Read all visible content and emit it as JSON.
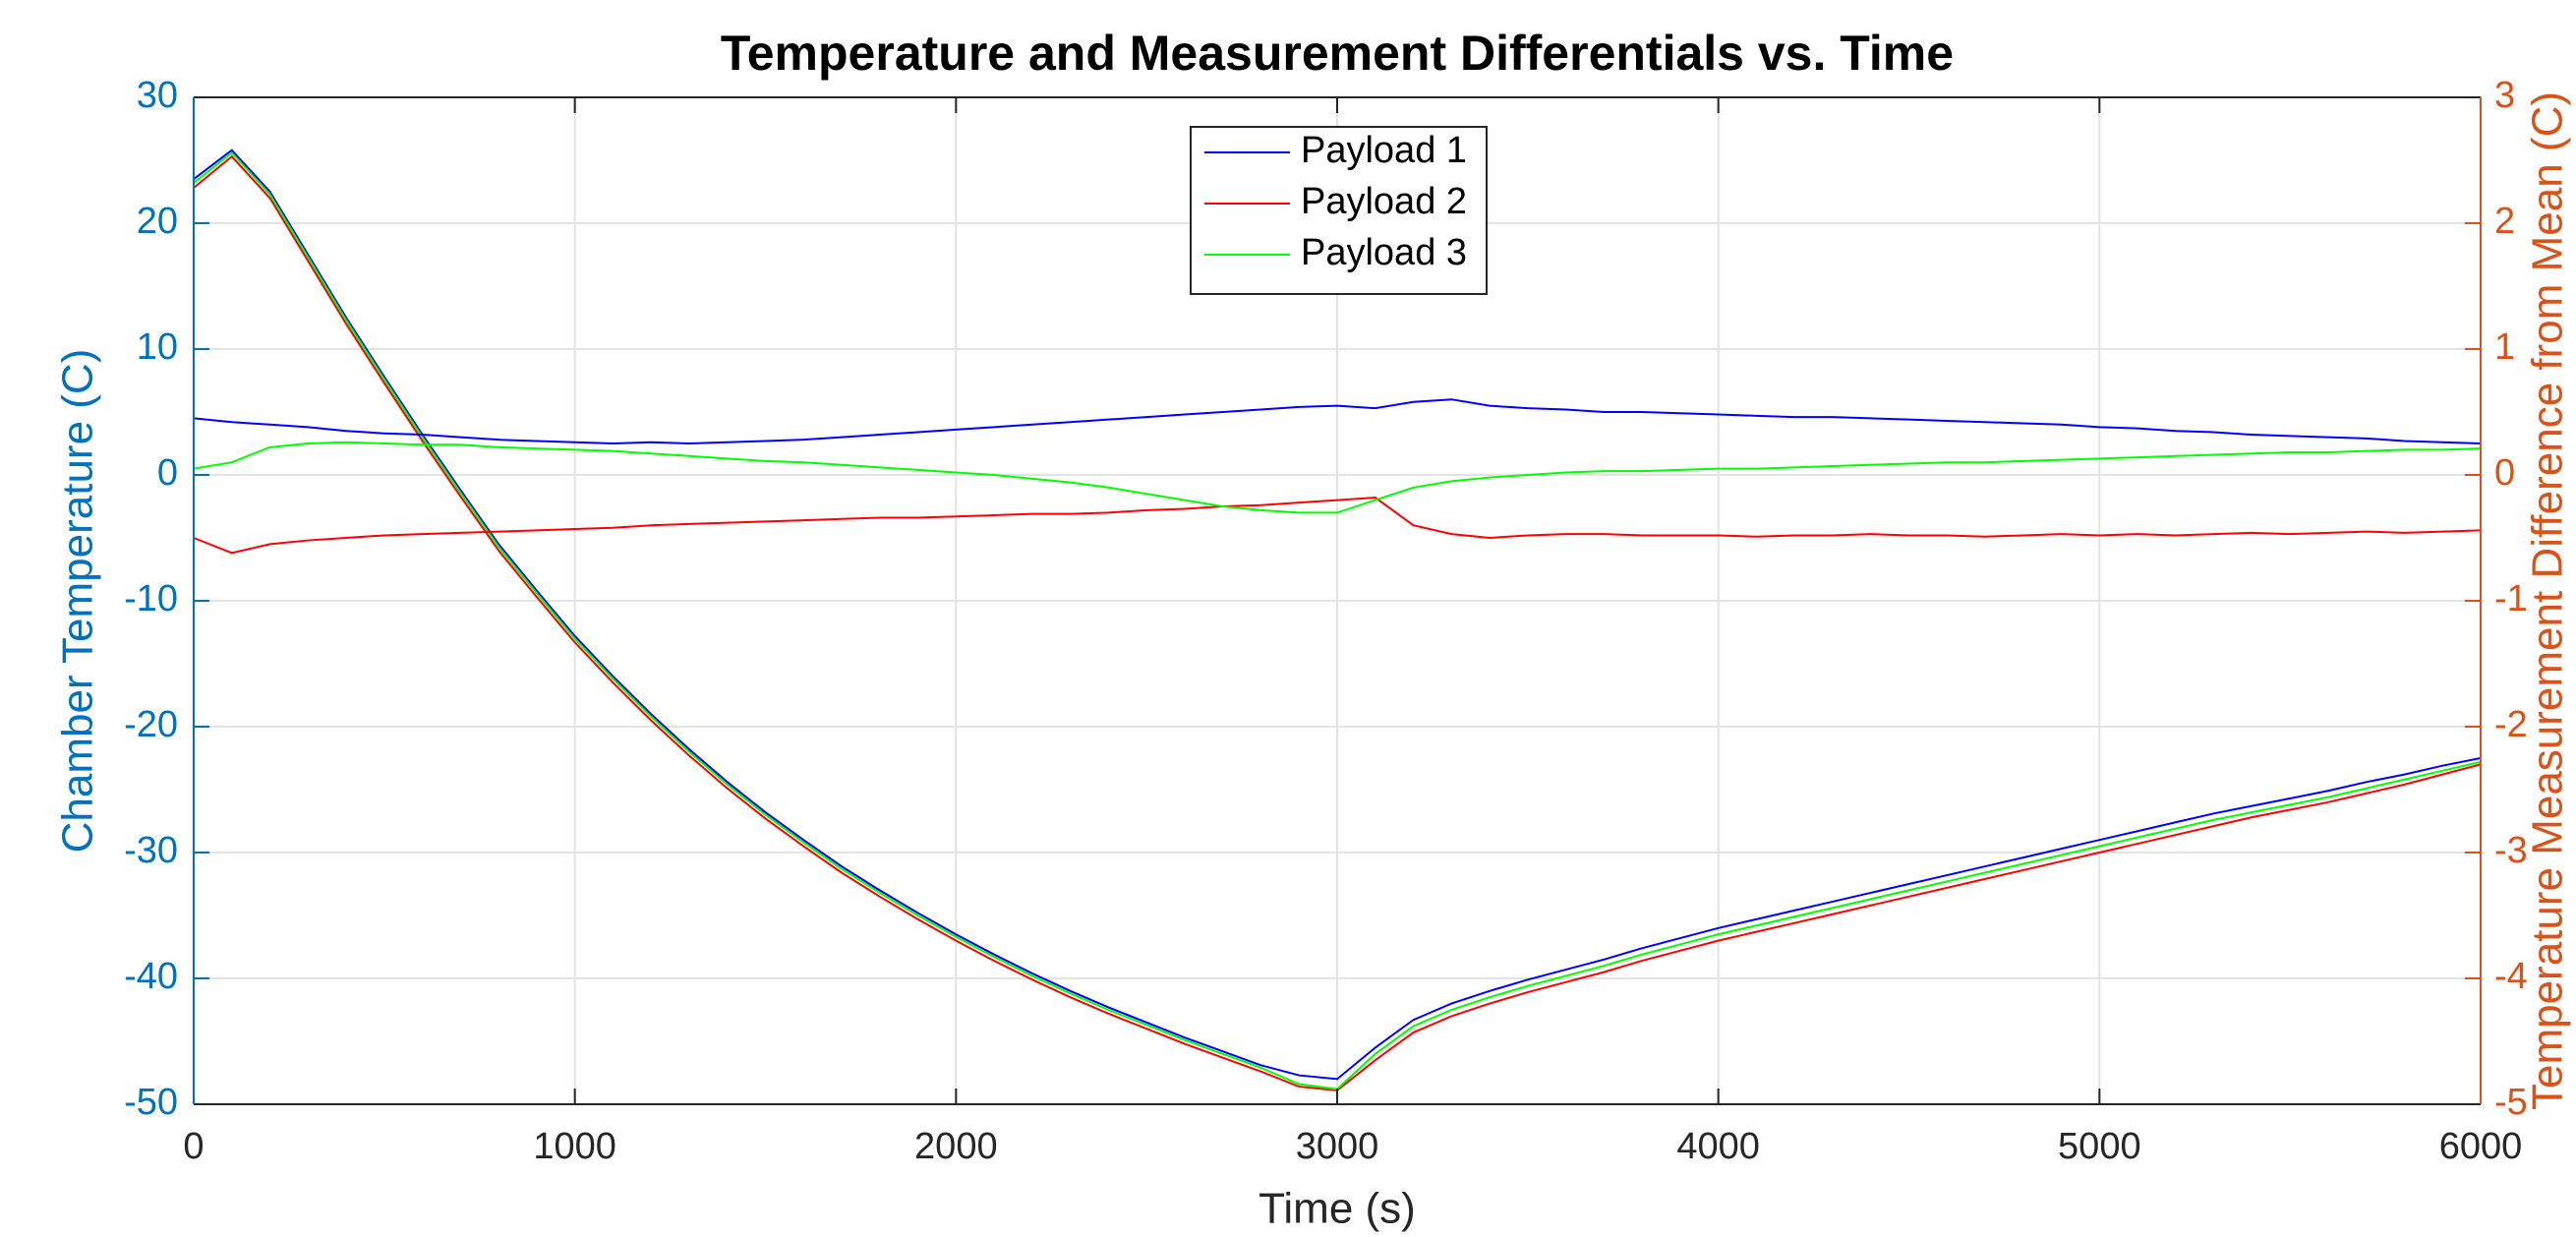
{
  "chart_data": {
    "type": "line",
    "title": "Temperature and Measurement Differentials vs. Time",
    "xlabel": "Time (s)",
    "ylabel": "Chamber Temperature (C)",
    "y2label": "Temperature Measurement Difference from Mean (C)",
    "x": [
      0,
      100,
      200,
      300,
      400,
      500,
      600,
      700,
      800,
      900,
      1000,
      1100,
      1200,
      1300,
      1400,
      1500,
      1600,
      1700,
      1800,
      1900,
      2000,
      2100,
      2200,
      2300,
      2400,
      2500,
      2600,
      2700,
      2800,
      2900,
      3000,
      3100,
      3200,
      3300,
      3400,
      3500,
      3600,
      3700,
      3800,
      3900,
      4000,
      4100,
      4200,
      4300,
      4400,
      4500,
      4600,
      4700,
      4800,
      4900,
      5000,
      5100,
      5200,
      5300,
      5400,
      5500,
      5600,
      5700,
      5800,
      5900,
      6000
    ],
    "xlim": [
      0,
      6000
    ],
    "xticks": [
      0,
      1000,
      2000,
      3000,
      4000,
      5000,
      6000
    ],
    "ylim": [
      -50,
      30
    ],
    "yticks": [
      -50,
      -40,
      -30,
      -20,
      -10,
      0,
      10,
      20,
      30
    ],
    "y2lim": [
      -5,
      3
    ],
    "y2ticks": [
      -5,
      -4,
      -3,
      -2,
      -1,
      0,
      1,
      2,
      3
    ],
    "ycolor": "#0072bd",
    "y2color": "#d95319",
    "grid": true,
    "legend": "upper center",
    "series": [
      {
        "name": "Payload 1",
        "color": "#0000ff",
        "values": [
          23.5,
          25.8,
          22.5,
          17.5,
          12.5,
          7.8,
          3.2,
          -1.2,
          -5.5,
          -9.2,
          -12.8,
          -16,
          -19,
          -21.8,
          -24.4,
          -26.8,
          -29,
          -31.1,
          -33,
          -34.8,
          -36.5,
          -38.1,
          -39.6,
          -41,
          -42.3,
          -43.5,
          -44.7,
          -45.8,
          -46.9,
          -47.7,
          -48,
          -45.5,
          -43.3,
          -42,
          -41,
          -40.1,
          -39.3,
          -38.5,
          -37.6,
          -36.8,
          -36,
          -35.3,
          -34.6,
          -33.9,
          -33.2,
          -32.5,
          -31.8,
          -31.1,
          -30.4,
          -29.7,
          -29,
          -28.3,
          -27.6,
          -26.9,
          -26.3,
          -25.7,
          -25.1,
          -24.4,
          -23.8,
          -23.1,
          -22.5
        ]
      },
      {
        "name": "Payload 2",
        "color": "#ff0000",
        "values": [
          22.8,
          25.3,
          22,
          17,
          12,
          7.3,
          2.7,
          -1.7,
          -6,
          -9.7,
          -13.3,
          -16.5,
          -19.5,
          -22.3,
          -24.9,
          -27.3,
          -29.5,
          -31.6,
          -33.5,
          -35.3,
          -37,
          -38.6,
          -40.1,
          -41.5,
          -42.8,
          -44,
          -45.2,
          -46.3,
          -47.4,
          -48.6,
          -48.9,
          -46.5,
          -44.3,
          -43,
          -42,
          -41.1,
          -40.3,
          -39.5,
          -38.6,
          -37.8,
          -37,
          -36.3,
          -35.6,
          -34.9,
          -34.2,
          -33.5,
          -32.8,
          -32.1,
          -31.4,
          -30.7,
          -30,
          -29.3,
          -28.6,
          -27.9,
          -27.2,
          -26.6,
          -26,
          -25.3,
          -24.6,
          -23.8,
          -23
        ]
      },
      {
        "name": "Payload 3",
        "color": "#00ff00",
        "values": [
          23.2,
          25.6,
          22.3,
          17.3,
          12.3,
          7.6,
          3,
          -1.4,
          -5.7,
          -9.4,
          -13,
          -16.2,
          -19.2,
          -22,
          -24.6,
          -27,
          -29.2,
          -31.3,
          -33.2,
          -35,
          -36.7,
          -38.3,
          -39.8,
          -41.2,
          -42.5,
          -43.7,
          -44.9,
          -46,
          -47.1,
          -48.4,
          -48.8,
          -46,
          -43.8,
          -42.5,
          -41.5,
          -40.6,
          -39.8,
          -39,
          -38.1,
          -37.3,
          -36.5,
          -35.8,
          -35.1,
          -34.4,
          -33.7,
          -33,
          -32.3,
          -31.6,
          -30.9,
          -30.2,
          -29.5,
          -28.8,
          -28.1,
          -27.4,
          -26.8,
          -26.2,
          -25.6,
          -24.9,
          -24.2,
          -23.5,
          -22.8
        ]
      },
      {
        "axis": "y2",
        "color": "#0000ff",
        "values": [
          0.45,
          0.42,
          0.4,
          0.38,
          0.35,
          0.33,
          0.32,
          0.3,
          0.28,
          0.27,
          0.26,
          0.25,
          0.26,
          0.25,
          0.26,
          0.27,
          0.28,
          0.3,
          0.32,
          0.34,
          0.36,
          0.38,
          0.4,
          0.42,
          0.44,
          0.46,
          0.48,
          0.5,
          0.52,
          0.54,
          0.55,
          0.53,
          0.58,
          0.6,
          0.55,
          0.53,
          0.52,
          0.5,
          0.5,
          0.49,
          0.48,
          0.47,
          0.46,
          0.46,
          0.45,
          0.44,
          0.43,
          0.42,
          0.41,
          0.4,
          0.38,
          0.37,
          0.35,
          0.34,
          0.32,
          0.31,
          0.3,
          0.29,
          0.27,
          0.26,
          0.25
        ]
      },
      {
        "axis": "y2",
        "color": "#ff0000",
        "values": [
          -0.5,
          -0.62,
          -0.55,
          -0.52,
          -0.5,
          -0.48,
          -0.47,
          -0.46,
          -0.45,
          -0.44,
          -0.43,
          -0.42,
          -0.4,
          -0.39,
          -0.38,
          -0.37,
          -0.36,
          -0.35,
          -0.34,
          -0.34,
          -0.33,
          -0.32,
          -0.31,
          -0.31,
          -0.3,
          -0.28,
          -0.27,
          -0.25,
          -0.24,
          -0.22,
          -0.2,
          -0.18,
          -0.4,
          -0.47,
          -0.5,
          -0.48,
          -0.47,
          -0.47,
          -0.48,
          -0.48,
          -0.48,
          -0.49,
          -0.48,
          -0.48,
          -0.47,
          -0.48,
          -0.48,
          -0.49,
          -0.48,
          -0.47,
          -0.48,
          -0.47,
          -0.48,
          -0.47,
          -0.46,
          -0.47,
          -0.46,
          -0.45,
          -0.46,
          -0.45,
          -0.44
        ]
      },
      {
        "axis": "y2",
        "color": "#00ff00",
        "values": [
          0.05,
          0.1,
          0.22,
          0.25,
          0.26,
          0.25,
          0.24,
          0.24,
          0.22,
          0.21,
          0.2,
          0.19,
          0.17,
          0.15,
          0.13,
          0.11,
          0.1,
          0.08,
          0.06,
          0.04,
          0.02,
          0,
          -0.03,
          -0.06,
          -0.1,
          -0.15,
          -0.2,
          -0.25,
          -0.28,
          -0.3,
          -0.3,
          -0.2,
          -0.1,
          -0.05,
          -0.02,
          0,
          0.02,
          0.03,
          0.03,
          0.04,
          0.05,
          0.05,
          0.06,
          0.07,
          0.08,
          0.09,
          0.1,
          0.1,
          0.11,
          0.12,
          0.13,
          0.14,
          0.15,
          0.16,
          0.17,
          0.18,
          0.18,
          0.19,
          0.2,
          0.2,
          0.21
        ]
      }
    ]
  }
}
